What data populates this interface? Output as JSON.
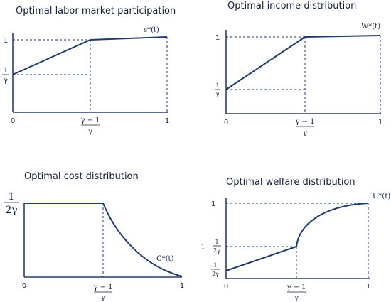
{
  "panels": {
    "labor": {
      "title": "Optimal labor market participation",
      "curve_label": "s*(t)",
      "y_top": "1",
      "y_low_num": "1",
      "y_low_den": "γ",
      "x_zero": "0",
      "x_mid_num": "γ − 1",
      "x_mid_den": "γ",
      "x_one": "1"
    },
    "income": {
      "title": "Optimal income distribution",
      "curve_label": "W*(t)",
      "y_top": "1",
      "y_low_num": "1",
      "y_low_den": "γ",
      "x_zero": "0",
      "x_mid_num": "γ − 1",
      "x_mid_den": "γ",
      "x_one": "1"
    },
    "cost": {
      "title": "Optimal cost distribution",
      "curve_label": "C*(t)",
      "y_top_num": "1",
      "y_top_den": "2γ",
      "x_zero": "0",
      "x_mid_num": "γ − 1",
      "x_mid_den": "γ",
      "x_one": "1"
    },
    "welfare": {
      "title": "Optimal welfare distribution",
      "curve_label": "U*(t)",
      "y_top": "1",
      "y_mid_prefix": "1 −",
      "y_mid_num": "1",
      "y_mid_den": "2γ",
      "y_low_num": "1",
      "y_low_den": "2γ",
      "x_zero": "0",
      "x_mid_num": "γ − 1",
      "x_mid_den": "γ",
      "x_one": "1"
    }
  }
}
